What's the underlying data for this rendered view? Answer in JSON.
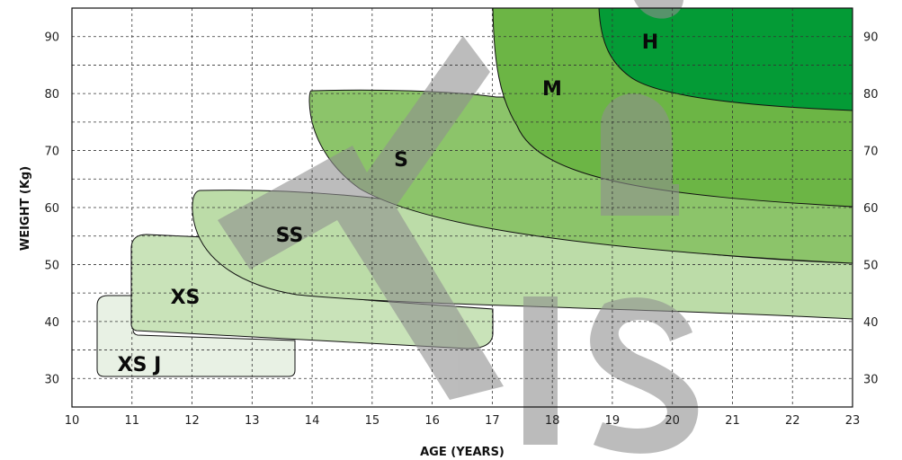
{
  "chart_data": {
    "type": "area",
    "xlabel": "AGE (YEARS)",
    "ylabel": "WEIGHT (Kg)",
    "xlim": [
      10,
      23
    ],
    "ylim": [
      25,
      95
    ],
    "x_ticks": [
      10,
      11,
      12,
      13,
      14,
      15,
      16,
      17,
      18,
      19,
      20,
      21,
      22,
      23
    ],
    "y_ticks": [
      30,
      40,
      50,
      60,
      70,
      80,
      90
    ],
    "grid": true,
    "grid_minor_y_step": 5,
    "watermark": "TIS",
    "zones": [
      {
        "label": "XS J",
        "color": "#e8f1e4",
        "age_range": [
          10.5,
          13.7
        ],
        "weight_range": [
          30,
          44
        ]
      },
      {
        "label": "XS",
        "color": "#c9e3b9",
        "age_range": [
          11.0,
          17.0
        ],
        "weight_range": [
          35,
          55
        ]
      },
      {
        "label": "SS",
        "color": "#bcdca8",
        "age_range": [
          12.0,
          23.0
        ],
        "weight_range": [
          40,
          62
        ]
      },
      {
        "label": "S",
        "color": "#8cc46a",
        "age_range": [
          14.0,
          23.0
        ],
        "weight_range": [
          50,
          80
        ]
      },
      {
        "label": "M",
        "color": "#6cb545",
        "age_range": [
          17.0,
          23.0
        ],
        "weight_range": [
          60,
          95
        ]
      },
      {
        "label": "H",
        "color": "#049b36",
        "age_range": [
          18.8,
          23.0
        ],
        "weight_range": [
          77,
          95
        ]
      }
    ]
  }
}
